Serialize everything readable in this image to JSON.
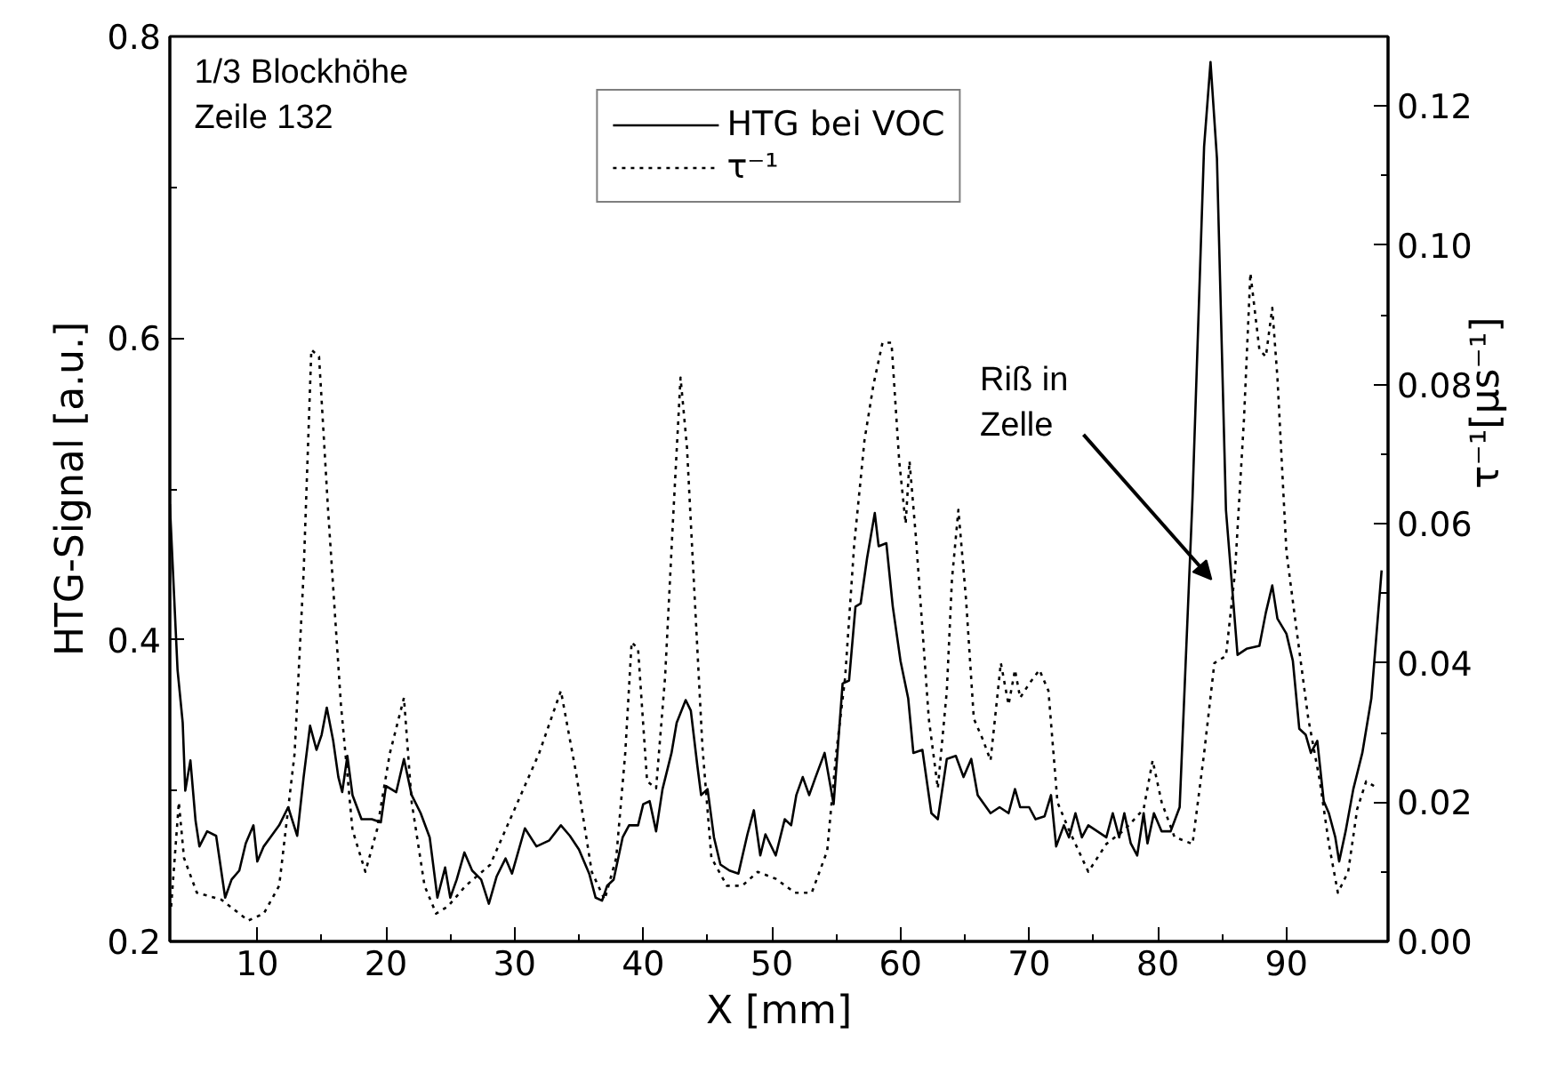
{
  "chart_data": {
    "type": "line",
    "xlabel": "X [mm]",
    "ylabel": "HTG-Signal [a.u.]",
    "y2label": "τ⁻¹[µs⁻¹]",
    "xlim": [
      3.2,
      97.9
    ],
    "xticks": [
      10,
      20,
      30,
      40,
      50,
      60,
      70,
      80,
      90
    ],
    "ylim": [
      0.2,
      0.8
    ],
    "yticks": [
      0.2,
      0.4,
      0.6,
      0.8
    ],
    "y2lim": [
      0,
      0.13
    ],
    "y2ticks": [
      {
        "value": 0,
        "label": "0.00"
      },
      {
        "value": 0.02,
        "label": "0.02"
      },
      {
        "value": 0.04,
        "label": "0.04"
      },
      {
        "value": 0.06,
        "label": "0.06"
      },
      {
        "value": 0.08,
        "label": "0.08"
      },
      {
        "value": 0.1,
        "label": "0.10"
      },
      {
        "value": 0.12,
        "label": "0.12"
      }
    ],
    "grid": false,
    "legend": "top",
    "marker": "none",
    "annotations": [
      "1/3 Blockhöhe\nZeile 132",
      "Riß in\nZelle"
    ],
    "series": [
      {
        "name": "HTG bei VOC",
        "color": "#000000",
        "line_style": "solid",
        "x": [
          3.2,
          3.8,
          4.2,
          4.4,
          4.8,
          5.2,
          5.5,
          6.1,
          6.8,
          7.5,
          8.0,
          8.6,
          9.1,
          9.7,
          10.0,
          10.5,
          11.1,
          11.7,
          12.4,
          13.1,
          13.6,
          14.1,
          14.6,
          15.0,
          15.4,
          15.9,
          16.3,
          16.6,
          17.0,
          17.4,
          18.1,
          18.9,
          19.6,
          20.0,
          20.8,
          21.4,
          22.0,
          22.7,
          23.4,
          24.0,
          24.6,
          25.0,
          25.5,
          26.1,
          26.7,
          27.4,
          28.0,
          28.6,
          29.3,
          29.8,
          30.8,
          31.7,
          32.7,
          33.6,
          34.3,
          35.0,
          35.8,
          36.3,
          36.8,
          37.2,
          37.7,
          38.4,
          38.9,
          39.6,
          40.0,
          40.5,
          41.0,
          41.5,
          42.2,
          42.6,
          43.3,
          43.7,
          44.2,
          44.5,
          45.0,
          45.5,
          46.0,
          46.7,
          47.4,
          48.1,
          48.6,
          49.1,
          49.5,
          50.3,
          51.0,
          51.5,
          51.9,
          52.4,
          52.9,
          53.4,
          54.1,
          54.8,
          55.5,
          56.0,
          56.5,
          56.9,
          57.4,
          58.0,
          58.3,
          58.9,
          59.4,
          60.0,
          60.6,
          61.0,
          61.7,
          62.4,
          62.9,
          63.6,
          64.3,
          64.9,
          65.5,
          66.0,
          67.0,
          67.7,
          68.4,
          68.9,
          69.3,
          70.0,
          70.5,
          71.2,
          71.7,
          72.1,
          72.7,
          73.1,
          73.6,
          74.1,
          74.6,
          75.3,
          76.0,
          76.5,
          77.0,
          77.4,
          77.9,
          78.4,
          78.9,
          79.2,
          79.7,
          80.3,
          81.0,
          81.7,
          82.7,
          83.6,
          84.1,
          84.6,
          85.3,
          86.2,
          86.9,
          87.9,
          88.4,
          88.9,
          89.3,
          90.0,
          90.5,
          91.0,
          91.5,
          91.9,
          92.4,
          92.9,
          93.3,
          93.8,
          94.1,
          94.6,
          95.2,
          95.9,
          96.6,
          97.4
        ],
        "values": [
          0.49,
          0.38,
          0.345,
          0.3,
          0.32,
          0.28,
          0.263,
          0.273,
          0.27,
          0.229,
          0.241,
          0.247,
          0.265,
          0.277,
          0.253,
          0.263,
          0.27,
          0.277,
          0.289,
          0.27,
          0.309,
          0.343,
          0.327,
          0.337,
          0.355,
          0.333,
          0.309,
          0.299,
          0.323,
          0.297,
          0.281,
          0.281,
          0.279,
          0.303,
          0.299,
          0.321,
          0.297,
          0.285,
          0.269,
          0.229,
          0.249,
          0.229,
          0.241,
          0.259,
          0.247,
          0.241,
          0.225,
          0.243,
          0.255,
          0.245,
          0.275,
          0.263,
          0.267,
          0.277,
          0.27,
          0.261,
          0.245,
          0.229,
          0.227,
          0.237,
          0.241,
          0.269,
          0.277,
          0.277,
          0.291,
          0.293,
          0.273,
          0.301,
          0.325,
          0.345,
          0.36,
          0.353,
          0.317,
          0.297,
          0.301,
          0.269,
          0.251,
          0.247,
          0.245,
          0.271,
          0.287,
          0.257,
          0.271,
          0.257,
          0.281,
          0.277,
          0.297,
          0.309,
          0.297,
          0.309,
          0.325,
          0.291,
          0.371,
          0.373,
          0.422,
          0.424,
          0.454,
          0.484,
          0.462,
          0.464,
          0.422,
          0.386,
          0.361,
          0.325,
          0.327,
          0.285,
          0.281,
          0.321,
          0.323,
          0.309,
          0.321,
          0.297,
          0.285,
          0.289,
          0.285,
          0.301,
          0.289,
          0.289,
          0.281,
          0.283,
          0.297,
          0.263,
          0.277,
          0.269,
          0.285,
          0.269,
          0.277,
          0.273,
          0.269,
          0.285,
          0.269,
          0.285,
          0.265,
          0.257,
          0.285,
          0.265,
          0.285,
          0.273,
          0.273,
          0.289,
          0.494,
          0.727,
          0.783,
          0.719,
          0.486,
          0.39,
          0.394,
          0.396,
          0.418,
          0.436,
          0.414,
          0.404,
          0.386,
          0.341,
          0.337,
          0.325,
          0.333,
          0.293,
          0.285,
          0.269,
          0.253,
          0.273,
          0.301,
          0.325,
          0.361,
          0.446
        ]
      },
      {
        "name": "τ⁻¹",
        "color": "#000000",
        "line_style": "dotted",
        "axis": "y2",
        "x": [
          3.3,
          3.9,
          4.3,
          5.3,
          7.2,
          9.3,
          10.5,
          11.7,
          12.9,
          13.6,
          14.2,
          14.8,
          15.5,
          16.5,
          17.4,
          18.4,
          19.3,
          20.3,
          21.4,
          22.0,
          23.0,
          23.9,
          24.8,
          26.2,
          28.1,
          30.0,
          31.9,
          33.6,
          34.8,
          36.0,
          37.0,
          37.9,
          38.6,
          39.1,
          39.6,
          40.3,
          41.0,
          41.7,
          42.3,
          42.9,
          43.4,
          43.9,
          44.6,
          45.3,
          46.5,
          47.7,
          48.9,
          50.3,
          51.8,
          53.1,
          54.3,
          55.0,
          55.7,
          56.4,
          57.2,
          57.9,
          58.6,
          59.3,
          59.9,
          60.4,
          60.7,
          61.2,
          61.7,
          62.2,
          62.9,
          63.6,
          64.0,
          64.5,
          65.1,
          65.7,
          66.4,
          67.0,
          67.8,
          68.4,
          68.9,
          69.3,
          70.0,
          70.8,
          71.5,
          72.2,
          73.1,
          74.6,
          76.0,
          77.4,
          78.9,
          79.6,
          80.3,
          81.3,
          82.7,
          83.6,
          84.4,
          85.3,
          86.0,
          86.7,
          87.2,
          87.9,
          88.4,
          88.9,
          89.3,
          90.0,
          90.7,
          91.7,
          92.6,
          93.3,
          94.0,
          94.8,
          95.5,
          96.2,
          97.1
        ],
        "values": [
          0.005,
          0.02,
          0.012,
          0.007,
          0.006,
          0.003,
          0.004,
          0.008,
          0.027,
          0.053,
          0.085,
          0.084,
          0.062,
          0.034,
          0.016,
          0.01,
          0.016,
          0.027,
          0.035,
          0.02,
          0.008,
          0.004,
          0.005,
          0.008,
          0.011,
          0.019,
          0.027,
          0.036,
          0.024,
          0.01,
          0.006,
          0.012,
          0.027,
          0.043,
          0.042,
          0.023,
          0.022,
          0.038,
          0.06,
          0.081,
          0.071,
          0.053,
          0.028,
          0.012,
          0.008,
          0.008,
          0.01,
          0.009,
          0.007,
          0.007,
          0.013,
          0.027,
          0.038,
          0.057,
          0.072,
          0.08,
          0.086,
          0.086,
          0.069,
          0.06,
          0.069,
          0.058,
          0.045,
          0.032,
          0.022,
          0.036,
          0.052,
          0.062,
          0.049,
          0.032,
          0.029,
          0.026,
          0.04,
          0.034,
          0.039,
          0.035,
          0.037,
          0.039,
          0.036,
          0.02,
          0.016,
          0.01,
          0.014,
          0.016,
          0.019,
          0.026,
          0.02,
          0.015,
          0.014,
          0.027,
          0.04,
          0.041,
          0.053,
          0.075,
          0.096,
          0.085,
          0.084,
          0.091,
          0.081,
          0.056,
          0.046,
          0.032,
          0.023,
          0.014,
          0.007,
          0.01,
          0.019,
          0.023,
          0.022
        ]
      }
    ]
  }
}
